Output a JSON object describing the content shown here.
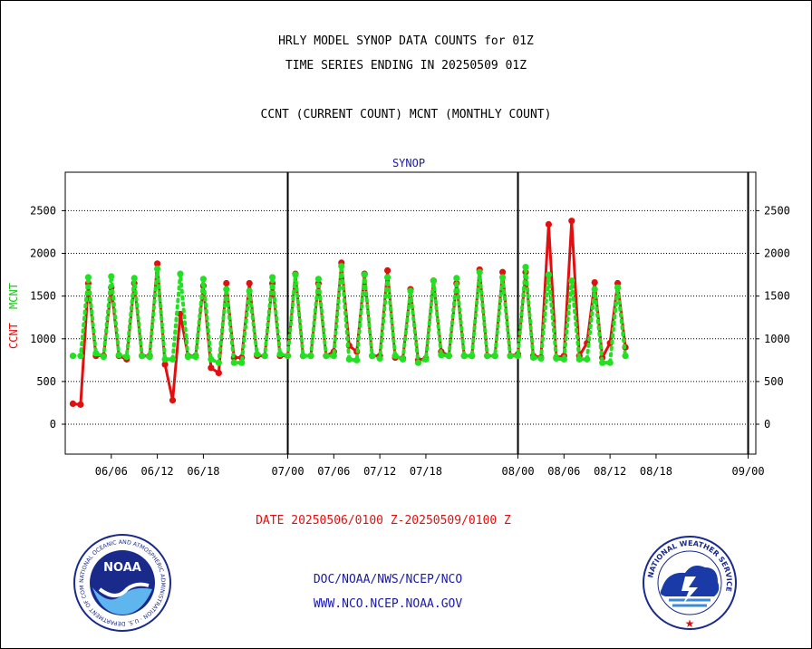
{
  "header": {
    "title_line1": "HRLY MODEL SYNOP DATA COUNTS for 01Z",
    "title_line2": "TIME SERIES ENDING IN 20250509 01Z",
    "subtitle": "CCNT (CURRENT COUNT) MCNT (MONTHLY COUNT)"
  },
  "footer": {
    "org_path": "DOC/NOAA/NWS/NCEP/NCO",
    "website": "WWW.NCO.NCEP.NOAA.GOV"
  },
  "logos": {
    "noaa_text": "NOAA",
    "noaa_ring": "NATIONAL OCEANIC AND ATMOSPHERIC ADMINISTRATION · U.S. DEPARTMENT OF COMMERCE ·",
    "nws_ring": "NATIONAL WEATHER SERVICE"
  },
  "colors": {
    "ccnt": "#e01010",
    "mcnt": "#22e022",
    "plot_title": "#1a1aa8",
    "date_label": "#e01010",
    "grid": "#000000"
  },
  "chart_data": {
    "type": "line",
    "title": "SYNOP",
    "date_range_label": "DATE 20250506/0100 Z-20250509/0100 Z",
    "ylabel_left": {
      "ccnt": "CCNT",
      "mcnt": "MCNT"
    },
    "ylim": [
      -350,
      2950
    ],
    "yticks": [
      0,
      500,
      1000,
      1500,
      2000,
      2500
    ],
    "xlim": [
      0,
      90
    ],
    "xticks": [
      {
        "x": 6,
        "label": "06/06"
      },
      {
        "x": 12,
        "label": "06/12"
      },
      {
        "x": 18,
        "label": "06/18"
      },
      {
        "x": 29,
        "label": "07/00"
      },
      {
        "x": 35,
        "label": "07/06"
      },
      {
        "x": 41,
        "label": "07/12"
      },
      {
        "x": 47,
        "label": "07/18"
      },
      {
        "x": 59,
        "label": "08/00"
      },
      {
        "x": 65,
        "label": "08/06"
      },
      {
        "x": 71,
        "label": "08/12"
      },
      {
        "x": 77,
        "label": "08/18"
      },
      {
        "x": 89,
        "label": "09/00"
      }
    ],
    "month_boundaries": [
      29,
      59,
      89
    ],
    "grid": "y-dotted",
    "series": [
      {
        "name": "CCNT",
        "color": "#e01010",
        "values": [
          240,
          230,
          1650,
          800,
          800,
          1600,
          800,
          760,
          1650,
          800,
          800,
          1880,
          700,
          280,
          1290,
          800,
          800,
          1620,
          660,
          600,
          1650,
          780,
          780,
          1650,
          800,
          800,
          1650,
          800,
          800,
          1760,
          800,
          800,
          1650,
          800,
          850,
          1890,
          920,
          850,
          1760,
          800,
          800,
          1800,
          780,
          770,
          1580,
          750,
          770,
          1680,
          850,
          800,
          1650,
          800,
          800,
          1810,
          800,
          800,
          1780,
          800,
          820,
          1780,
          800,
          780,
          2340,
          780,
          800,
          2380,
          800,
          950,
          1660,
          780,
          950,
          1650,
          900
        ]
      },
      {
        "name": "MCNT",
        "color": "#22e022",
        "values": [
          800,
          800,
          1720,
          830,
          790,
          1730,
          810,
          790,
          1710,
          800,
          790,
          1820,
          760,
          760,
          1760,
          790,
          790,
          1700,
          760,
          720,
          1580,
          720,
          720,
          1560,
          820,
          800,
          1720,
          820,
          800,
          1750,
          800,
          800,
          1700,
          800,
          800,
          1850,
          760,
          750,
          1750,
          800,
          770,
          1720,
          800,
          760,
          1560,
          720,
          760,
          1680,
          810,
          800,
          1710,
          800,
          800,
          1780,
          800,
          800,
          1720,
          800,
          800,
          1840,
          780,
          770,
          1750,
          770,
          760,
          1680,
          760,
          760,
          1580,
          720,
          720,
          1600,
          800
        ]
      }
    ]
  }
}
